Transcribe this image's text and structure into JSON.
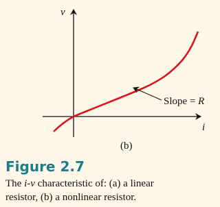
{
  "figure": {
    "axis_labels": {
      "y": "v",
      "x": "i"
    },
    "annotation": {
      "text": "Slope = ",
      "symbol": "R"
    },
    "panel_label": "(b)",
    "caption": {
      "title": "Figure 2.7",
      "line1": [
        "The ",
        "i",
        "-",
        "v",
        " characteristic of: (a) a linear"
      ],
      "line2": "resistor, (b) a nonlinear resistor."
    }
  }
}
